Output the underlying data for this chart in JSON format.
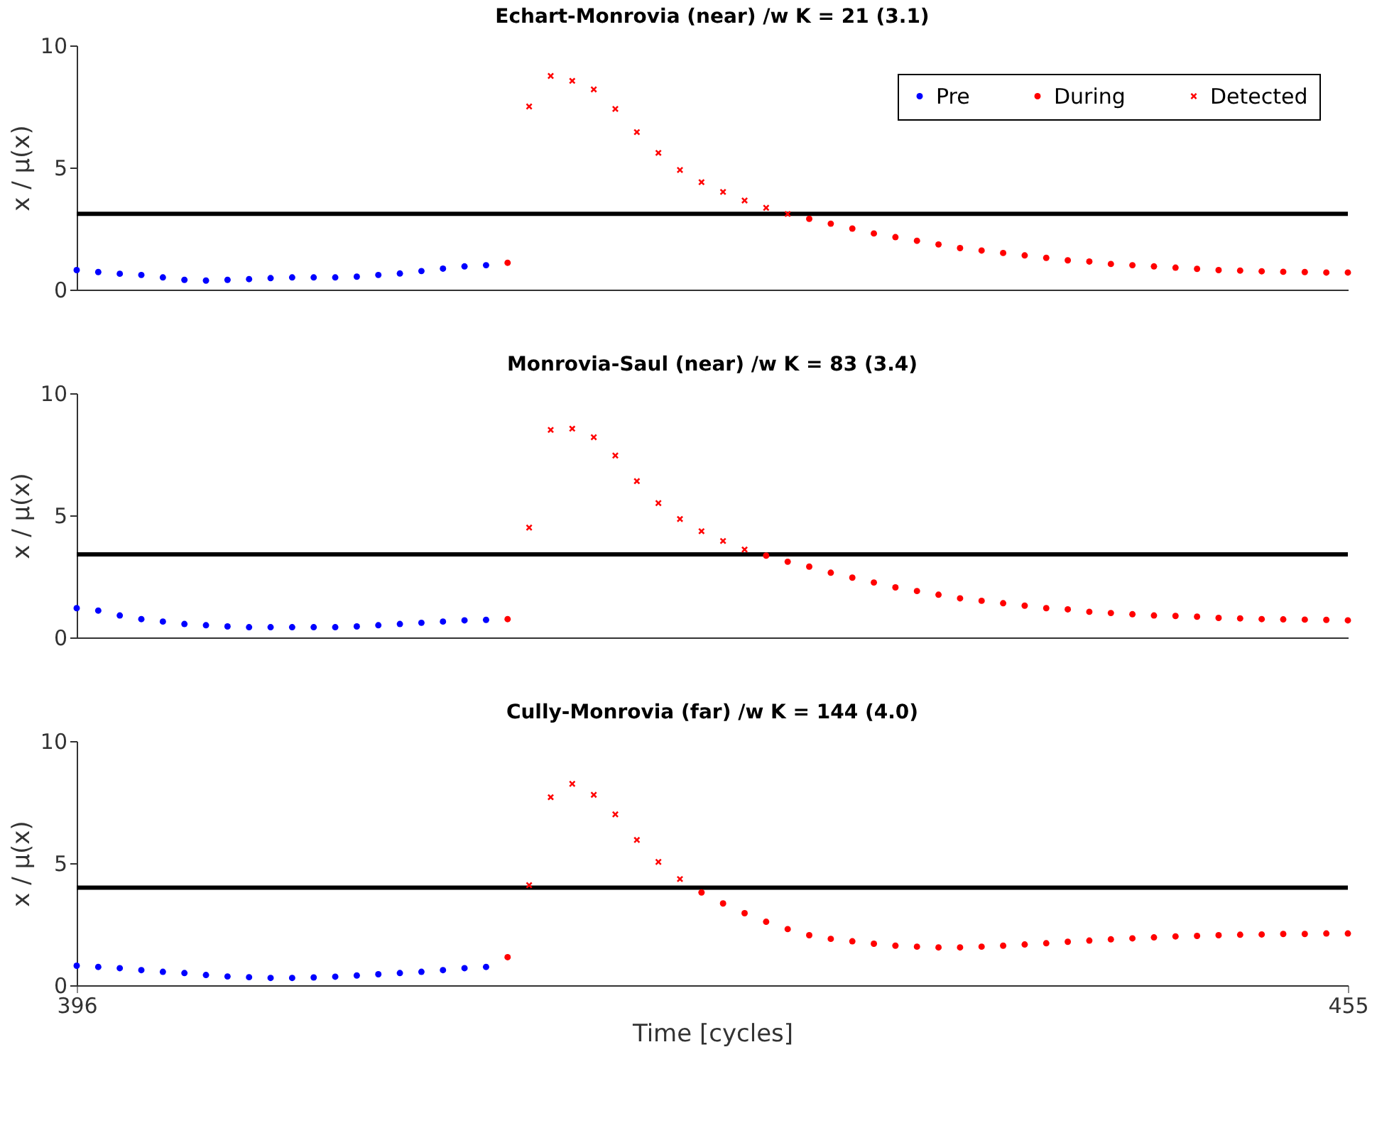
{
  "chart_data": [
    {
      "type": "scatter",
      "title": "Echart-Monrovia (near) /w K = 21 (3.1)",
      "ylabel": "x / μ(x)",
      "xlim": [
        396,
        455
      ],
      "ylim": [
        0,
        10
      ],
      "yticks": [
        0,
        5,
        10
      ],
      "tick_labels": "y",
      "grid": false,
      "legend": "top right",
      "series": [
        {
          "name": "Pre",
          "color": "#0000ff",
          "marker": "circle",
          "x": [
            396,
            397,
            398,
            399,
            400,
            401,
            402,
            403,
            404,
            405,
            406,
            407,
            408,
            409,
            410,
            411,
            412,
            413,
            414,
            415
          ],
          "values": [
            0.8,
            0.72,
            0.65,
            0.6,
            0.5,
            0.4,
            0.37,
            0.4,
            0.43,
            0.47,
            0.5,
            0.5,
            0.5,
            0.53,
            0.6,
            0.66,
            0.76,
            0.86,
            0.95,
            1.0
          ]
        },
        {
          "name": "During",
          "color": "#ff0000",
          "marker": "circle",
          "x": [
            416,
            430,
            431,
            432,
            433,
            434,
            435,
            436,
            437,
            438,
            439,
            440,
            441,
            442,
            443,
            444,
            445,
            446,
            447,
            448,
            449,
            450,
            451,
            452,
            453,
            454,
            455
          ],
          "values": [
            1.1,
            2.9,
            2.7,
            2.5,
            2.3,
            2.15,
            2.0,
            1.85,
            1.7,
            1.6,
            1.5,
            1.4,
            1.3,
            1.2,
            1.15,
            1.05,
            1.0,
            0.95,
            0.9,
            0.85,
            0.8,
            0.78,
            0.75,
            0.73,
            0.72,
            0.7,
            0.7
          ]
        },
        {
          "name": "Detected",
          "color": "#ff0000",
          "marker": "cross",
          "x": [
            417,
            418,
            419,
            420,
            421,
            422,
            423,
            424,
            425,
            426,
            427,
            428,
            429
          ],
          "values": [
            7.5,
            8.75,
            8.55,
            8.2,
            7.4,
            6.45,
            5.6,
            4.9,
            4.4,
            4.0,
            3.65,
            3.35,
            3.1
          ]
        }
      ],
      "ref_lines": [
        {
          "axis": "y",
          "value": 3.1,
          "color": "#000000"
        }
      ]
    },
    {
      "type": "scatter",
      "title": "Monrovia-Saul (near) /w K = 83 (3.4)",
      "ylabel": "x / μ(x)",
      "xlim": [
        396,
        455
      ],
      "ylim": [
        0,
        10
      ],
      "yticks": [
        0,
        5,
        10
      ],
      "tick_labels": "y",
      "grid": false,
      "series": [
        {
          "color": "#0000ff",
          "marker": "circle",
          "x": [
            396,
            397,
            398,
            399,
            400,
            401,
            402,
            403,
            404,
            405,
            406,
            407,
            408,
            409,
            410,
            411,
            412,
            413,
            414,
            415
          ],
          "values": [
            1.2,
            1.1,
            0.9,
            0.75,
            0.65,
            0.55,
            0.5,
            0.45,
            0.42,
            0.42,
            0.42,
            0.42,
            0.42,
            0.45,
            0.5,
            0.55,
            0.6,
            0.65,
            0.7,
            0.72
          ]
        },
        {
          "color": "#ff0000",
          "marker": "circle",
          "x": [
            416,
            428,
            429,
            430,
            431,
            432,
            433,
            434,
            435,
            436,
            437,
            438,
            439,
            440,
            441,
            442,
            443,
            444,
            445,
            446,
            447,
            448,
            449,
            450,
            451,
            452,
            453,
            454,
            455
          ],
          "values": [
            0.75,
            3.35,
            3.1,
            2.9,
            2.65,
            2.45,
            2.25,
            2.05,
            1.9,
            1.75,
            1.6,
            1.5,
            1.4,
            1.3,
            1.2,
            1.15,
            1.05,
            1.0,
            0.95,
            0.9,
            0.88,
            0.85,
            0.8,
            0.78,
            0.75,
            0.74,
            0.73,
            0.72,
            0.7
          ]
        },
        {
          "color": "#ff0000",
          "marker": "cross",
          "x": [
            417,
            418,
            419,
            420,
            421,
            422,
            423,
            424,
            425,
            426,
            427
          ],
          "values": [
            4.5,
            8.5,
            8.55,
            8.2,
            7.45,
            6.4,
            5.5,
            4.85,
            4.35,
            3.95,
            3.6
          ]
        }
      ],
      "ref_lines": [
        {
          "axis": "y",
          "value": 3.4,
          "color": "#000000"
        }
      ]
    },
    {
      "type": "scatter",
      "title": "Cully-Monrovia (far) /w K = 144 (4.0)",
      "xlabel": "Time [cycles]",
      "ylabel": "x / μ(x)",
      "xlim": [
        396,
        455
      ],
      "xticks": [
        396,
        455
      ],
      "ylim": [
        0,
        10
      ],
      "yticks": [
        0,
        5,
        10
      ],
      "grid": false,
      "series": [
        {
          "color": "#0000ff",
          "marker": "circle",
          "x": [
            396,
            397,
            398,
            399,
            400,
            401,
            402,
            403,
            404,
            405,
            406,
            407,
            408,
            409,
            410,
            411,
            412,
            413,
            414,
            415
          ],
          "values": [
            0.8,
            0.75,
            0.7,
            0.62,
            0.55,
            0.5,
            0.42,
            0.36,
            0.33,
            0.3,
            0.3,
            0.32,
            0.35,
            0.4,
            0.45,
            0.5,
            0.55,
            0.62,
            0.7,
            0.75
          ]
        },
        {
          "color": "#ff0000",
          "marker": "circle",
          "x": [
            416,
            425,
            426,
            427,
            428,
            429,
            430,
            431,
            432,
            433,
            434,
            435,
            436,
            437,
            438,
            439,
            440,
            441,
            442,
            443,
            444,
            445,
            446,
            447,
            448,
            449,
            450,
            451,
            452,
            453,
            454,
            455
          ],
          "values": [
            1.15,
            3.8,
            3.35,
            2.95,
            2.6,
            2.3,
            2.05,
            1.9,
            1.8,
            1.7,
            1.62,
            1.58,
            1.55,
            1.55,
            1.58,
            1.62,
            1.67,
            1.72,
            1.78,
            1.83,
            1.88,
            1.92,
            1.96,
            2.0,
            2.02,
            2.05,
            2.07,
            2.08,
            2.1,
            2.1,
            2.12,
            2.12
          ]
        },
        {
          "color": "#ff0000",
          "marker": "cross",
          "x": [
            417,
            418,
            419,
            420,
            421,
            422,
            423,
            424
          ],
          "values": [
            4.1,
            7.7,
            8.25,
            7.8,
            7.0,
            5.95,
            5.05,
            4.35
          ]
        }
      ],
      "ref_lines": [
        {
          "axis": "y",
          "value": 4.0,
          "color": "#000000"
        }
      ]
    }
  ]
}
